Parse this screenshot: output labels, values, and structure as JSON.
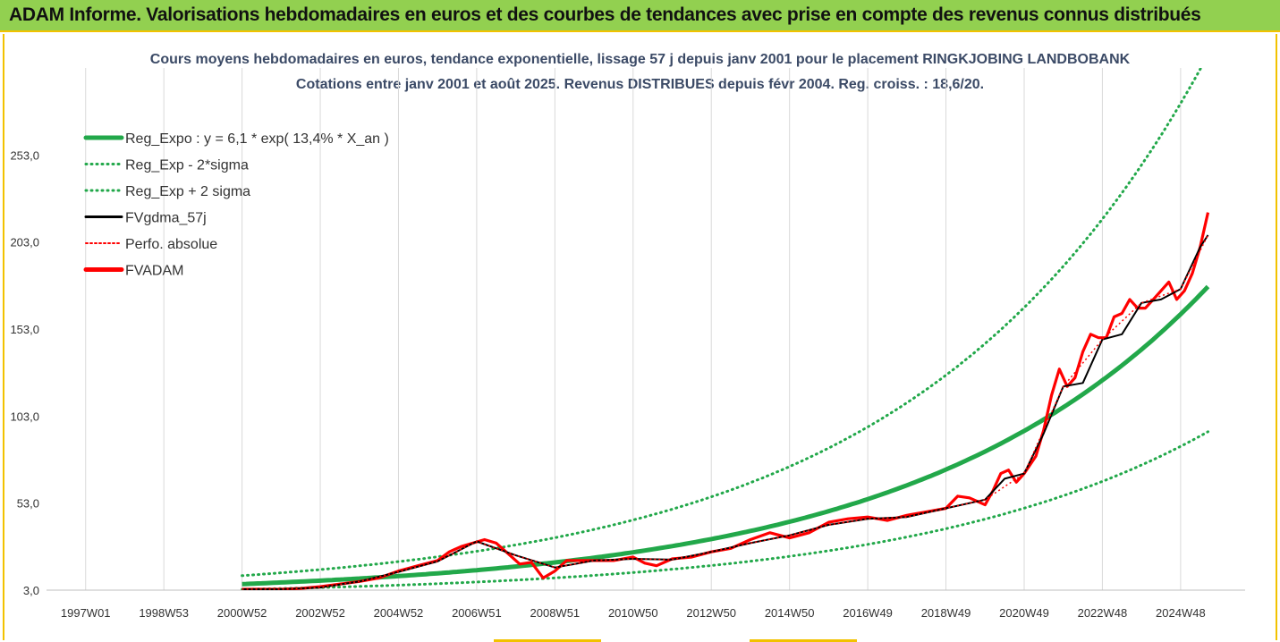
{
  "header": {
    "title": "ADAM Informe. Valorisations hebdomadaires en euros et des courbes de tendances avec prise en compte des revenus connus distribués"
  },
  "chart_data": {
    "type": "line",
    "title": "Cours moyens hebdomadaires en euros, tendance exponentielle, lissage 57 j depuis janv 2001 pour le placement RINGKJOBING LANDBOBANK",
    "subtitle": "Cotations entre janv 2001 et août 2025.  Revenus DISTRIBUES depuis févr 2004.  Reg. croiss. : 18,6/20.",
    "x_tick_labels": [
      "1997W01",
      "1998W53",
      "2000W52",
      "2002W52",
      "2004W52",
      "2006W51",
      "2008W51",
      "2010W50",
      "2012W50",
      "2014W50",
      "2016W49",
      "2018W49",
      "2020W49",
      "2022W48",
      "2024W48"
    ],
    "x_tick_years": [
      1997.0,
      1999.0,
      2001.0,
      2003.0,
      2005.0,
      2007.0,
      2009.0,
      2011.0,
      2013.0,
      2015.0,
      2017.0,
      2019.0,
      2021.0,
      2023.0,
      2025.0
    ],
    "xlim": [
      1996.0,
      2026.65
    ],
    "y_tick_labels": [
      "3,0",
      "53,0",
      "103,0",
      "153,0",
      "203,0",
      "253,0"
    ],
    "y_tick_values": [
      3,
      53,
      103,
      153,
      203,
      253
    ],
    "ylim": [
      3,
      303
    ],
    "grid": "vertical",
    "legend_position": "top-left",
    "legend": [
      {
        "label": "Reg_Expo : y = 6,1 * exp( 13,4% *  X_an )",
        "color": "#22a84a",
        "style": "solid-thick"
      },
      {
        "label": "Reg_Exp - 2*sigma",
        "color": "#22a84a",
        "style": "dotted"
      },
      {
        "label": "Reg_Exp + 2 sigma",
        "color": "#22a84a",
        "style": "dotted"
      },
      {
        "label": "FVgdma_57j",
        "color": "#000000",
        "style": "solid"
      },
      {
        "label": "Perfo. absolue",
        "color": "#ff0000",
        "style": "dotted"
      },
      {
        "label": "FVADAM",
        "color": "#ff0000",
        "style": "solid-thick"
      }
    ],
    "series": [
      {
        "name": "FVADAM",
        "color": "#ff0000",
        "x": [
          2001.0,
          2001.5,
          2002.0,
          2002.5,
          2003.0,
          2003.5,
          2004.0,
          2004.5,
          2005.0,
          2005.5,
          2006.0,
          2006.3,
          2006.6,
          2006.9,
          2007.2,
          2007.5,
          2007.8,
          2008.1,
          2008.4,
          2008.7,
          2009.0,
          2009.3,
          2009.6,
          2010.0,
          2010.5,
          2011.0,
          2011.3,
          2011.6,
          2012.0,
          2012.5,
          2013.0,
          2013.5,
          2014.0,
          2014.5,
          2015.0,
          2015.5,
          2016.0,
          2016.5,
          2017.0,
          2017.5,
          2018.0,
          2018.5,
          2019.0,
          2019.3,
          2019.6,
          2020.0,
          2020.2,
          2020.4,
          2020.6,
          2020.8,
          2021.0,
          2021.3,
          2021.5,
          2021.7,
          2021.9,
          2022.1,
          2022.3,
          2022.5,
          2022.7,
          2022.9,
          2023.1,
          2023.3,
          2023.5,
          2023.7,
          2023.9,
          2024.1,
          2024.3,
          2024.5,
          2024.7,
          2024.9,
          2025.1,
          2025.3,
          2025.5,
          2025.7
        ],
        "values": [
          3.5,
          3.5,
          3.5,
          4.0,
          5.0,
          6.5,
          8.0,
          10.0,
          14.0,
          17.0,
          20.0,
          25.0,
          28.0,
          30.0,
          32.0,
          30.0,
          24.0,
          18.0,
          19.0,
          10.0,
          14.0,
          20.0,
          20.0,
          20.0,
          20.0,
          22.0,
          18.5,
          17.0,
          21.0,
          22.0,
          25.0,
          27.0,
          32.0,
          36.0,
          33.0,
          36.0,
          42.0,
          44.0,
          45.0,
          43.0,
          46.0,
          48.0,
          50.0,
          57.0,
          56.0,
          52.0,
          60.0,
          70.0,
          72.0,
          65.0,
          70.0,
          80.0,
          95.0,
          115.0,
          130.0,
          120.0,
          125.0,
          140.0,
          150.0,
          148.0,
          148.0,
          160.0,
          162.0,
          170.0,
          165.0,
          165.0,
          170.0,
          175.0,
          180.0,
          170.0,
          175.0,
          185.0,
          200.0,
          220.0
        ]
      },
      {
        "name": "FVgdma_57j",
        "color": "#000000",
        "x": [
          2001.0,
          2002.0,
          2003.0,
          2004.0,
          2005.0,
          2006.0,
          2007.0,
          2008.0,
          2009.0,
          2010.0,
          2011.0,
          2012.0,
          2013.0,
          2014.0,
          2015.0,
          2016.0,
          2017.0,
          2018.0,
          2019.0,
          2020.0,
          2020.5,
          2021.0,
          2021.5,
          2022.0,
          2022.5,
          2023.0,
          2023.5,
          2024.0,
          2024.5,
          2025.0,
          2025.5,
          2025.7
        ],
        "values": [
          3.5,
          3.5,
          4.5,
          8.0,
          13.5,
          19.5,
          31.0,
          23.0,
          16.0,
          20.0,
          21.0,
          20.5,
          25.0,
          30.0,
          34.5,
          40.5,
          44.0,
          45.0,
          50.0,
          55.0,
          67.0,
          70.0,
          93.0,
          120.0,
          122.0,
          147.0,
          150.0,
          168.0,
          170.0,
          176.0,
          200.0,
          207.0
        ]
      },
      {
        "name": "Perfo. absolue",
        "color": "#ff0000",
        "x": [
          2001.0,
          2002.0,
          2003.0,
          2004.0,
          2005.0,
          2006.0,
          2007.0,
          2008.0,
          2009.0,
          2010.0,
          2011.0,
          2012.0,
          2013.0,
          2014.0,
          2015.0,
          2016.0,
          2017.0,
          2018.0,
          2019.0,
          2020.0,
          2021.0,
          2022.0,
          2023.0,
          2024.0,
          2025.0,
          2025.7
        ],
        "values": [
          3.5,
          3.5,
          4.5,
          8.0,
          13.5,
          19.5,
          31.0,
          23.0,
          16.0,
          20.0,
          21.0,
          20.5,
          25.0,
          30.0,
          34.5,
          40.5,
          44.0,
          45.0,
          50.0,
          55.0,
          70.0,
          120.0,
          147.0,
          168.0,
          176.0,
          207.0
        ]
      }
    ],
    "regression": {
      "name": "Reg_Expo",
      "a": 6.1,
      "rate": 0.134,
      "origin_year": 2000.55,
      "start_year": 2001.0,
      "end_year": 2025.7,
      "lower_factor": 0.53,
      "upper_factor": 1.75
    }
  }
}
